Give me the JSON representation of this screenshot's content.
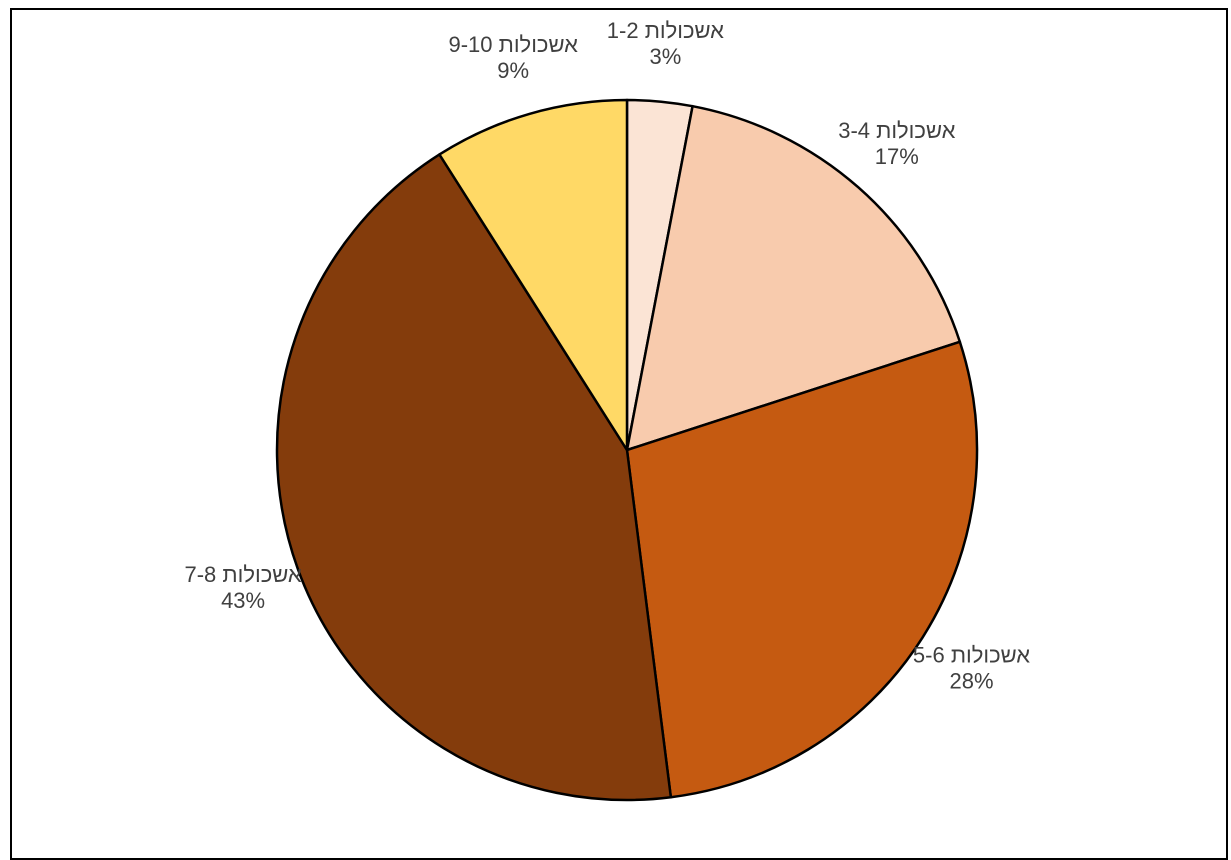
{
  "chart_data": {
    "type": "pie",
    "title": "",
    "slices": [
      {
        "label": "אשכולות 1-2",
        "value": 3,
        "value_label": "3%",
        "color": "#fbe4d5"
      },
      {
        "label": "אשכולות 3-4",
        "value": 17,
        "value_label": "17%",
        "color": "#f8cbad"
      },
      {
        "label": "אשכולות 5-6",
        "value": 28,
        "value_label": "28%",
        "color": "#c55a11"
      },
      {
        "label": "אשכולות 7-8",
        "value": 43,
        "value_label": "43%",
        "color": "#843c0c"
      },
      {
        "label": "אשכולות 9-10",
        "value": 9,
        "value_label": "9%",
        "color": "#ffd966"
      }
    ],
    "start_angle_deg": 0,
    "direction": "clockwise",
    "legend": "none",
    "slice_border_color": "#000000",
    "label_color": "#404040"
  }
}
